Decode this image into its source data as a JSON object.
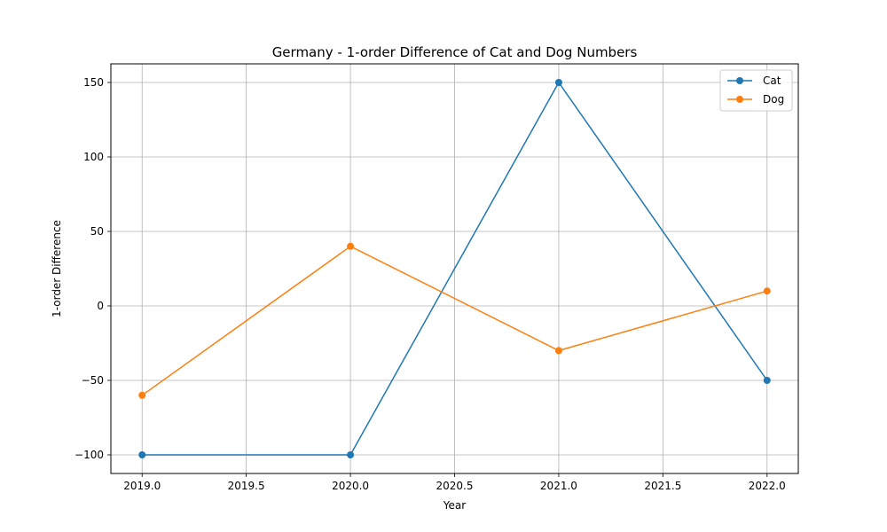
{
  "chart_data": {
    "type": "line",
    "title": "Germany - 1-order Difference of Cat and Dog Numbers",
    "xlabel": "Year",
    "ylabel": "1-order Difference",
    "x": [
      2019,
      2020,
      2021,
      2022
    ],
    "xlim": [
      2018.85,
      2022.15
    ],
    "ylim": [
      -112.5,
      162.5
    ],
    "xticks": [
      2019.0,
      2019.5,
      2020.0,
      2020.5,
      2021.0,
      2021.5,
      2022.0
    ],
    "xtick_labels": [
      "2019.0",
      "2019.5",
      "2020.0",
      "2020.5",
      "2021.0",
      "2021.5",
      "2022.0"
    ],
    "yticks": [
      -100,
      -50,
      0,
      50,
      100,
      150
    ],
    "ytick_labels": [
      "−100",
      "−50",
      "0",
      "50",
      "100",
      "150"
    ],
    "grid": true,
    "legend_position": "top-right",
    "series": [
      {
        "name": "Cat",
        "color": "#1f77b4",
        "marker": "circle",
        "values": [
          -100,
          -100,
          150,
          -50
        ]
      },
      {
        "name": "Dog",
        "color": "#ff7f0e",
        "marker": "circle",
        "values": [
          -60,
          40,
          -30,
          10
        ]
      }
    ]
  }
}
